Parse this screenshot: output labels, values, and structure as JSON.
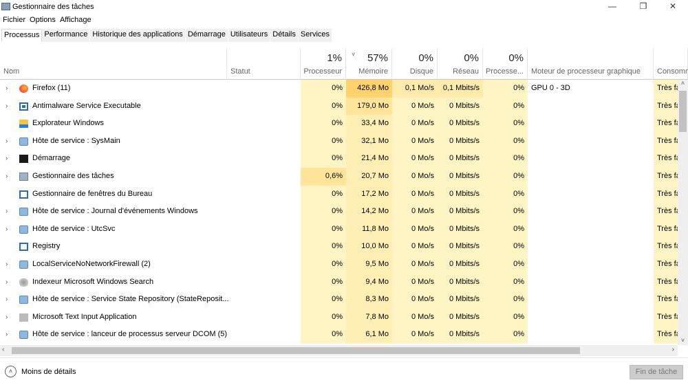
{
  "window": {
    "title": "Gestionnaire des tâches",
    "minimize": "—",
    "maximize": "❐",
    "close": "✕"
  },
  "menu": [
    "Fichier",
    "Options",
    "Affichage"
  ],
  "tabs": [
    "Processus",
    "Performance",
    "Historique des applications",
    "Démarrage",
    "Utilisateurs",
    "Détails",
    "Services"
  ],
  "columns": {
    "name": "Nom",
    "status": "Statut",
    "cpu": {
      "label": "Processeur",
      "pct": "1%"
    },
    "memory": {
      "label": "Mémoire",
      "pct": "57%",
      "sort": "˅"
    },
    "disk": {
      "label": "Disque",
      "pct": "0%"
    },
    "network": {
      "label": "Réseau",
      "pct": "0%"
    },
    "gpu": {
      "label": "Processe...",
      "pct": "0%"
    },
    "gpu_engine": "Moteur de processeur graphique",
    "power": "Consomm"
  },
  "colors": {
    "heat_light": "#fff4c4",
    "heat_mem": "#ffefb4",
    "heat_high": "#ffd26e",
    "heat_mid": "#ffe49a"
  },
  "rows": [
    {
      "expand": true,
      "icon": "firefox-icon",
      "name": "Firefox (11)",
      "cpu": "0%",
      "mem": "426,8 Mo",
      "disk": "0,1 Mo/s",
      "net": "0,1 Mbits/s",
      "gpu": "0%",
      "engine": "GPU 0 - 3D",
      "power": "Très faible"
    },
    {
      "expand": true,
      "icon": "antimalware-icon",
      "name": "Antimalware Service Executable",
      "cpu": "0%",
      "mem": "179,0 Mo",
      "disk": "0 Mo/s",
      "net": "0 Mbits/s",
      "gpu": "0%",
      "engine": "",
      "power": "Très faible"
    },
    {
      "expand": false,
      "icon": "folder-icon",
      "name": "Explorateur Windows",
      "cpu": "0%",
      "mem": "33,4 Mo",
      "disk": "0 Mo/s",
      "net": "0 Mbits/s",
      "gpu": "0%",
      "engine": "",
      "power": "Très faible"
    },
    {
      "expand": true,
      "icon": "gear-icon",
      "name": "Hôte de service : SysMain",
      "cpu": "0%",
      "mem": "32,1 Mo",
      "disk": "0 Mo/s",
      "net": "0 Mbits/s",
      "gpu": "0%",
      "engine": "",
      "power": "Très faible"
    },
    {
      "expand": true,
      "icon": "startup-icon",
      "name": "Démarrage",
      "cpu": "0%",
      "mem": "21,4 Mo",
      "disk": "0 Mo/s",
      "net": "0 Mbits/s",
      "gpu": "0%",
      "engine": "",
      "power": "Très faible"
    },
    {
      "expand": true,
      "icon": "task-manager-icon",
      "name": "Gestionnaire des tâches",
      "cpu": "0,6%",
      "mem": "20,7 Mo",
      "disk": "0 Mo/s",
      "net": "0 Mbits/s",
      "gpu": "0%",
      "engine": "",
      "power": "Très faible"
    },
    {
      "expand": false,
      "icon": "window-icon",
      "name": "Gestionnaire de fenêtres du Bureau",
      "cpu": "0%",
      "mem": "17,2 Mo",
      "disk": "0 Mo/s",
      "net": "0 Mbits/s",
      "gpu": "0%",
      "engine": "",
      "power": "Très faible"
    },
    {
      "expand": true,
      "icon": "gear-icon",
      "name": "Hôte de service : Journal d'événements Windows",
      "cpu": "0%",
      "mem": "14,2 Mo",
      "disk": "0 Mo/s",
      "net": "0 Mbits/s",
      "gpu": "0%",
      "engine": "",
      "power": "Très faible"
    },
    {
      "expand": true,
      "icon": "gear-icon",
      "name": "Hôte de service : UtcSvc",
      "cpu": "0%",
      "mem": "11,8 Mo",
      "disk": "0 Mo/s",
      "net": "0 Mbits/s",
      "gpu": "0%",
      "engine": "",
      "power": "Très faible"
    },
    {
      "expand": false,
      "icon": "window-icon",
      "name": "Registry",
      "cpu": "0%",
      "mem": "10,0 Mo",
      "disk": "0 Mo/s",
      "net": "0 Mbits/s",
      "gpu": "0%",
      "engine": "",
      "power": "Très faible"
    },
    {
      "expand": true,
      "icon": "gear-icon",
      "name": "LocalServiceNoNetworkFirewall (2)",
      "cpu": "0%",
      "mem": "9,5 Mo",
      "disk": "0 Mo/s",
      "net": "0 Mbits/s",
      "gpu": "0%",
      "engine": "",
      "power": "Très faible"
    },
    {
      "expand": true,
      "icon": "search-indexer-icon",
      "name": "Indexeur Microsoft Windows Search",
      "cpu": "0%",
      "mem": "9,4 Mo",
      "disk": "0 Mo/s",
      "net": "0 Mbits/s",
      "gpu": "0%",
      "engine": "",
      "power": "Très faible"
    },
    {
      "expand": true,
      "icon": "gear-icon",
      "name": "Hôte de service : Service State Repository (StateReposit...",
      "cpu": "0%",
      "mem": "8,3 Mo",
      "disk": "0 Mo/s",
      "net": "0 Mbits/s",
      "gpu": "0%",
      "engine": "",
      "power": "Très faible"
    },
    {
      "expand": true,
      "icon": "app-icon",
      "name": "Microsoft Text Input Application",
      "cpu": "0%",
      "mem": "7,8 Mo",
      "disk": "0 Mo/s",
      "net": "0 Mbits/s",
      "gpu": "0%",
      "engine": "",
      "power": "Très faible"
    },
    {
      "expand": true,
      "icon": "gear-icon",
      "name": "Hôte de service : lanceur de processus serveur DCOM (5)",
      "cpu": "0%",
      "mem": "6,1 Mo",
      "disk": "0 Mo/s",
      "net": "0 Mbits/s",
      "gpu": "0%",
      "engine": "",
      "power": "Très faible"
    }
  ],
  "footer": {
    "less_details": "Moins de détails",
    "end_task": "Fin de tâche"
  }
}
